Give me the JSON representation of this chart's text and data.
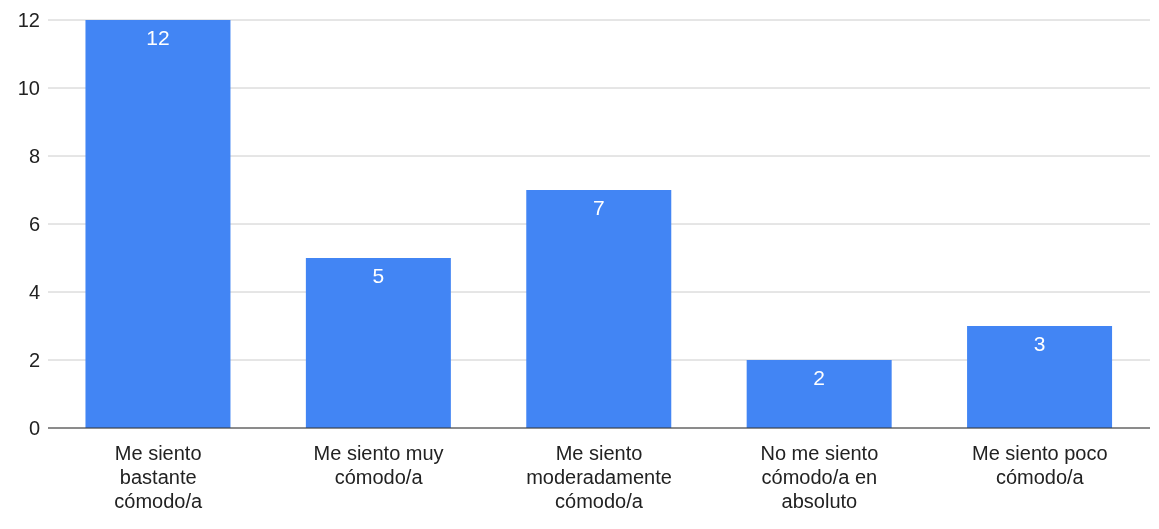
{
  "chart_data": {
    "type": "bar",
    "categories": [
      "Me siento bastante cómodo/a",
      "Me siento muy cómodo/a",
      "Me siento moderadamente cómodo/a",
      "No me siento cómodo/a en absoluto",
      "Me siento poco cómodo/a"
    ],
    "values": [
      12,
      5,
      7,
      2,
      3
    ],
    "color": "#4285f4",
    "ylim": [
      0,
      12
    ],
    "yticks": [
      0,
      2,
      4,
      6,
      8,
      10,
      12
    ],
    "grid": "y",
    "data_labels": true
  }
}
